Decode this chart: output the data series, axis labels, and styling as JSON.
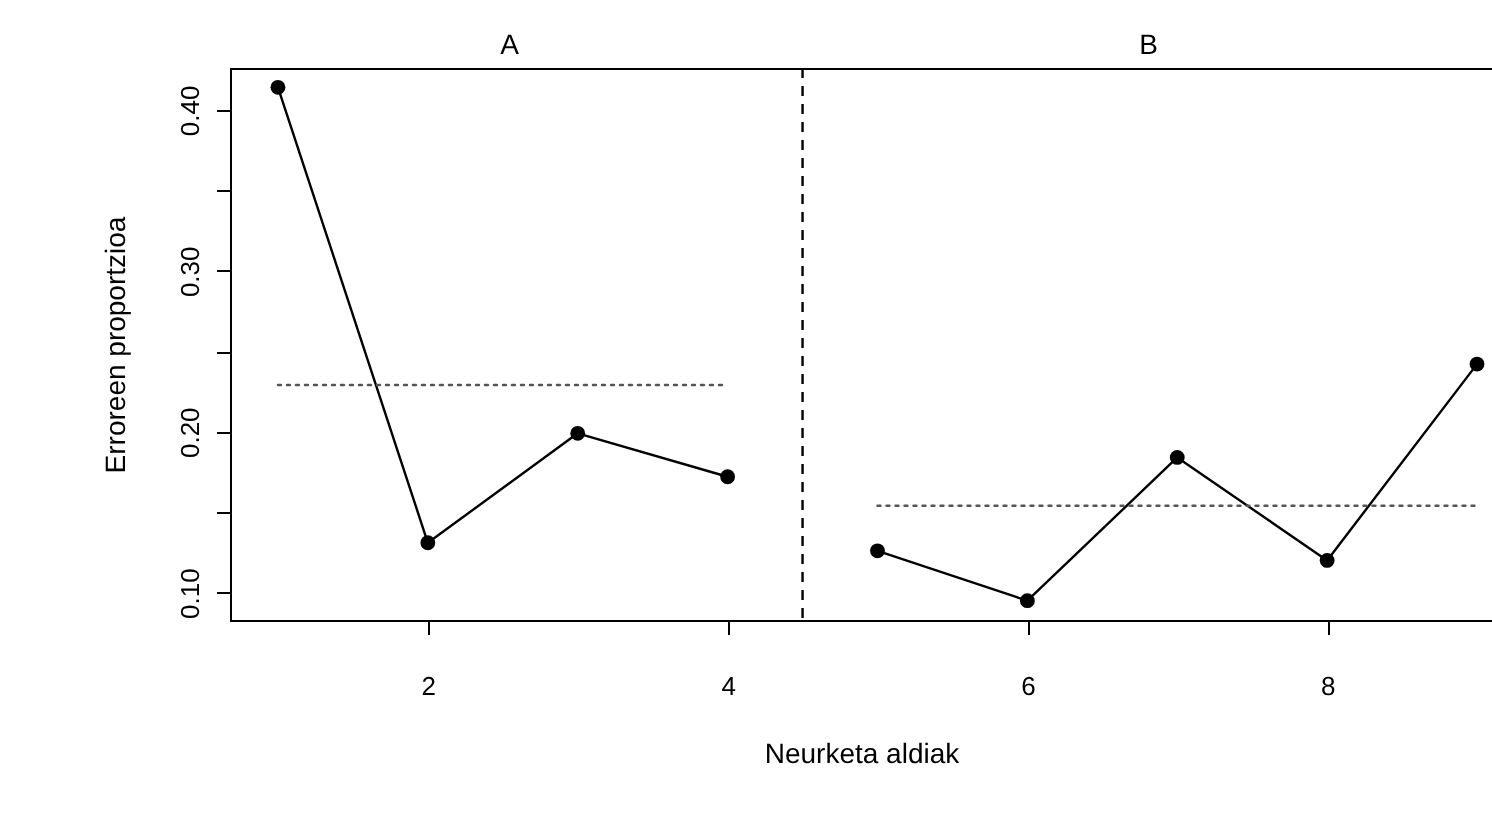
{
  "chart_data": {
    "type": "line",
    "xlabel": "Neurketa aldiak",
    "ylabel": "Erroreen proportzioa",
    "xlim": [
      0.68,
      9.1
    ],
    "ylim": [
      0.083,
      0.426
    ],
    "xticks": [
      2,
      4,
      6,
      8
    ],
    "yticks": [
      {
        "value": 0.1,
        "label": "0.10"
      },
      {
        "value": 0.15,
        "label": null
      },
      {
        "value": 0.2,
        "label": "0.20"
      },
      {
        "value": 0.25,
        "label": null
      },
      {
        "value": 0.3,
        "label": "0.30"
      },
      {
        "value": 0.35,
        "label": null
      },
      {
        "value": 0.4,
        "label": "0.40"
      }
    ],
    "grid": false,
    "series": [
      {
        "x": [
          1,
          2,
          3,
          4
        ],
        "values": [
          0.414,
          0.131,
          0.199,
          0.172
        ],
        "color": "#000000",
        "marker": "circle",
        "line_style": "solid"
      },
      {
        "x": [
          5,
          6,
          7,
          8,
          9
        ],
        "values": [
          0.126,
          0.095,
          0.184,
          0.12,
          0.242
        ],
        "color": "#000000",
        "marker": "circle",
        "line_style": "solid"
      },
      {
        "x": [
          1,
          4
        ],
        "values": [
          0.229,
          0.229
        ],
        "color": "#555555",
        "marker": "none",
        "line_style": "dotted"
      },
      {
        "x": [
          5,
          9
        ],
        "values": [
          0.154,
          0.154
        ],
        "color": "#555555",
        "marker": "none",
        "line_style": "dotted"
      }
    ],
    "ref_lines": [
      {
        "axis": "x",
        "value": 4.5,
        "color": "#000000",
        "line_style": "dashed"
      }
    ],
    "annotations": [
      "A",
      "B"
    ]
  }
}
